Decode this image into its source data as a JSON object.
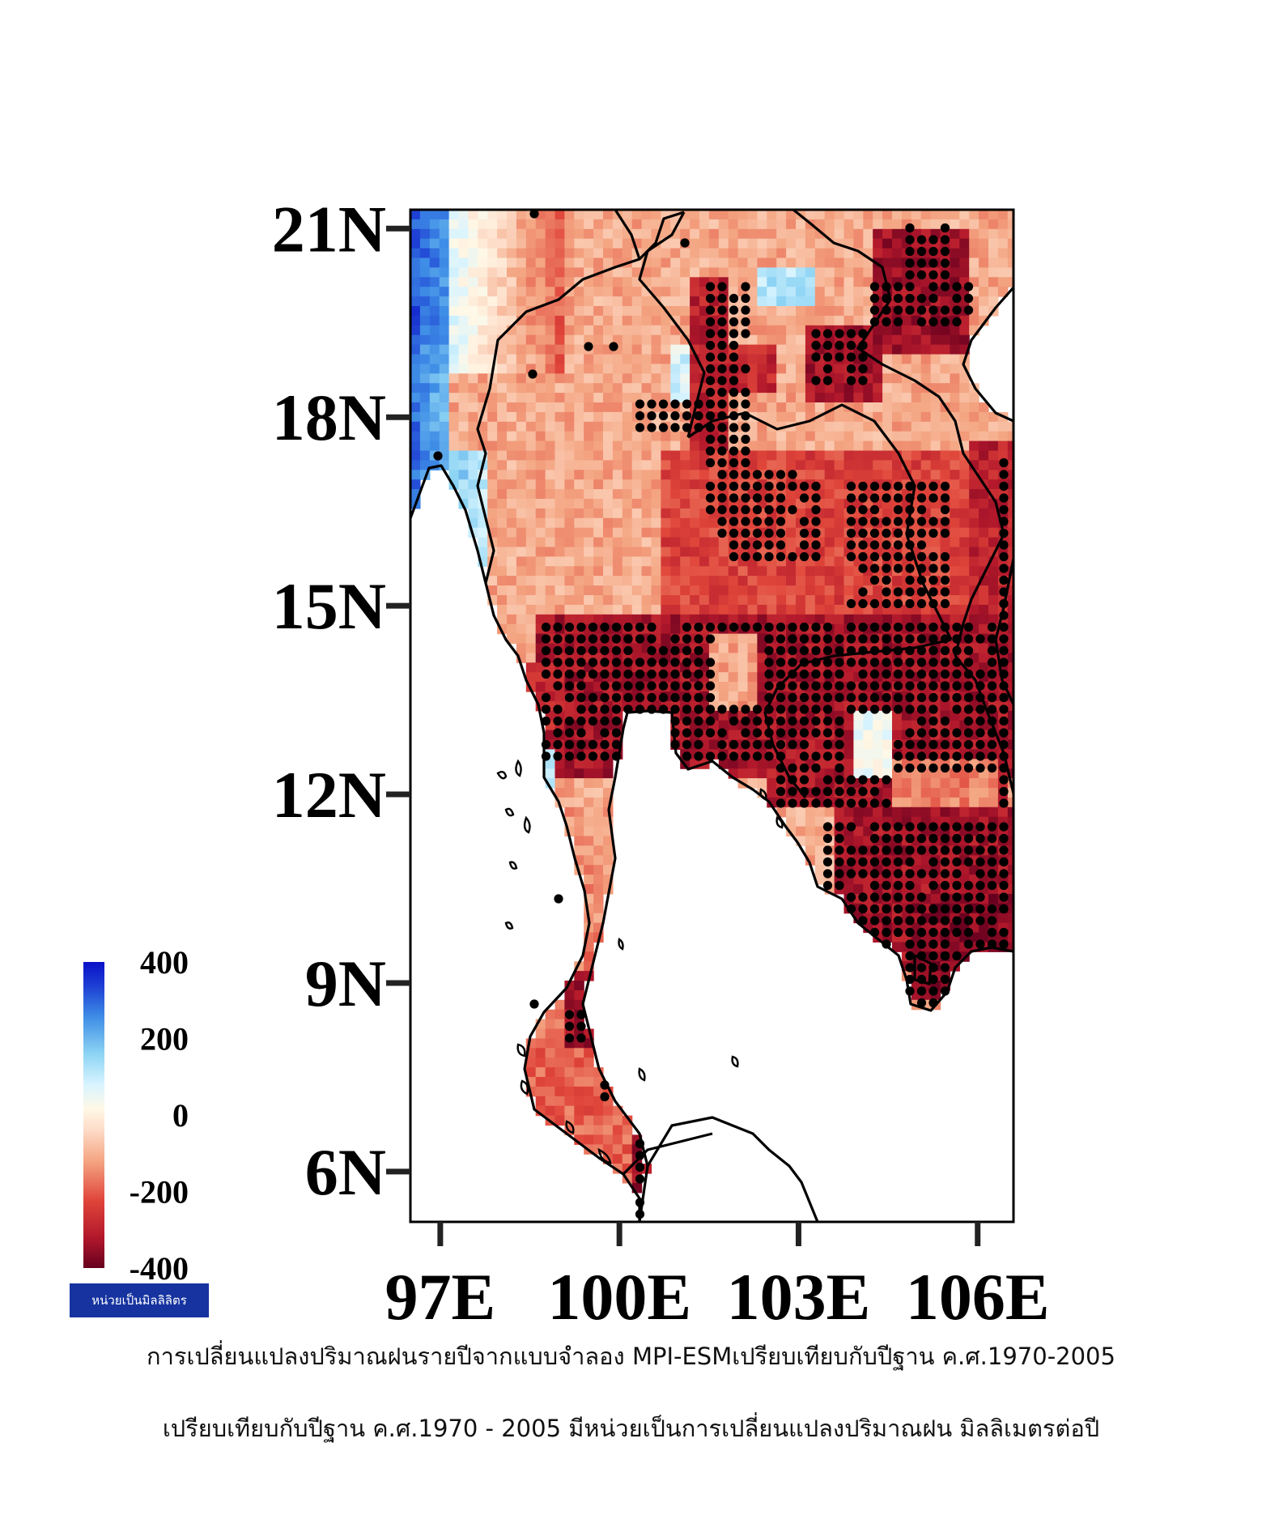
{
  "map": {
    "lat_ticks": [
      "21N",
      "18N",
      "15N",
      "12N",
      "9N",
      "6N"
    ],
    "lon_ticks": [
      "97E",
      "100E",
      "103E",
      "106E"
    ],
    "lat_range": [
      5.2,
      21.3
    ],
    "lon_range": [
      96.5,
      106.6
    ]
  },
  "colorbar": {
    "labels": [
      "400",
      "200",
      "0",
      "-200",
      "-400"
    ],
    "range": [
      -400,
      400
    ],
    "colors": [
      "#67001f",
      "#b2182b",
      "#d6604d",
      "#f4a582",
      "#fddbc7",
      "#fff5e0",
      "#d1f0ff",
      "#92d5f5",
      "#4393e6",
      "#2050d8",
      "#0a10c8"
    ]
  },
  "unit_badge": "หน่วยเป็นมิลลิลิตร",
  "captions": [
    "การเปลี่ยนแปลงปริมาณฝนรายปีจากแบบจำลอง MPI-ESMเปรียบเทียบกับปีฐาน ค.ศ.1970-2005",
    "เปรียบเทียบกับปีฐาน ค.ศ.1970 - 2005 มีหน่วยเป็นการเปลี่ยนแปลงปริมาณฝน มิลลิเมตรต่อปี"
  ]
}
